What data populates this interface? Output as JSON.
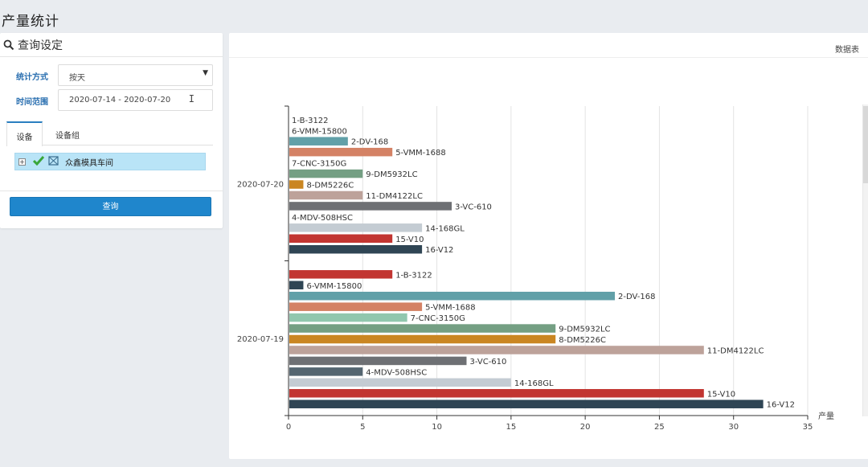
{
  "page": {
    "title": "产量统计"
  },
  "query_panel": {
    "header": "查询设定",
    "stat_method_label": "统计方式",
    "stat_method_value": "按天",
    "time_range_label": "时间范围",
    "time_range_value": "2020-07-14 - 2020-07-20",
    "tabs": [
      "设备",
      "设备组"
    ],
    "tree_item": "众鑫模具车间",
    "query_button": "查询"
  },
  "chart_panel": {
    "data_table_link": "数据表"
  },
  "colors": {
    "1-B-3122": "#c23531",
    "6-VMM-15800": "#2f4554",
    "2-DV-168": "#61a0a8",
    "5-VMM-1688": "#d48265",
    "7-CNC-3150G": "#91c7ae",
    "9-DM5932LC": "#749f83",
    "8-DM5226C": "#ca8622",
    "11-DM4122LC": "#bda29a",
    "3-VC-610": "#6e7074",
    "4-MDV-508HSC": "#546570",
    "14-168GL": "#c4ccd3",
    "15-V10": "#c23531",
    "16-V12": "#2f4554"
  },
  "chart_data": {
    "type": "bar",
    "orientation": "horizontal",
    "xlabel": "产量",
    "xlim": [
      0,
      35
    ],
    "xticks": [
      0,
      5,
      10,
      15,
      20,
      25,
      30,
      35
    ],
    "series_order": [
      "1-B-3122",
      "6-VMM-15800",
      "2-DV-168",
      "5-VMM-1688",
      "7-CNC-3150G",
      "9-DM5932LC",
      "8-DM5226C",
      "11-DM4122LC",
      "3-VC-610",
      "4-MDV-508HSC",
      "14-168GL",
      "15-V10",
      "16-V12"
    ],
    "categories": [
      "2020-07-20",
      "2020-07-19"
    ],
    "values": {
      "2020-07-20": [
        0,
        0,
        4,
        7,
        0,
        5,
        1,
        5,
        11,
        0,
        9,
        7,
        9
      ],
      "2020-07-19": [
        7,
        1,
        22,
        9,
        8,
        18,
        18,
        28,
        12,
        5,
        15,
        28,
        32
      ]
    }
  }
}
